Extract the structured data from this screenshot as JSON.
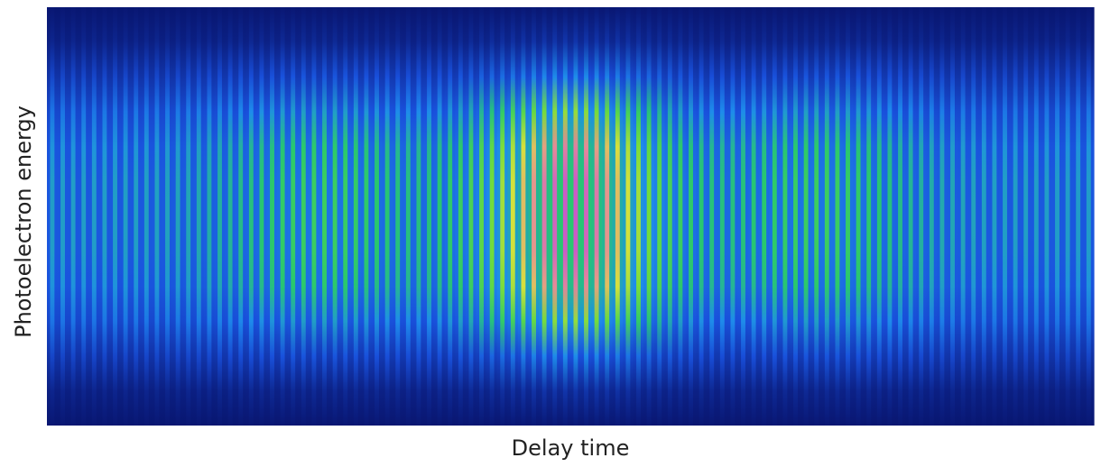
{
  "chart_data": {
    "type": "heatmap",
    "xlabel": "Delay time",
    "ylabel": "Photoelectron energy"
  }
}
